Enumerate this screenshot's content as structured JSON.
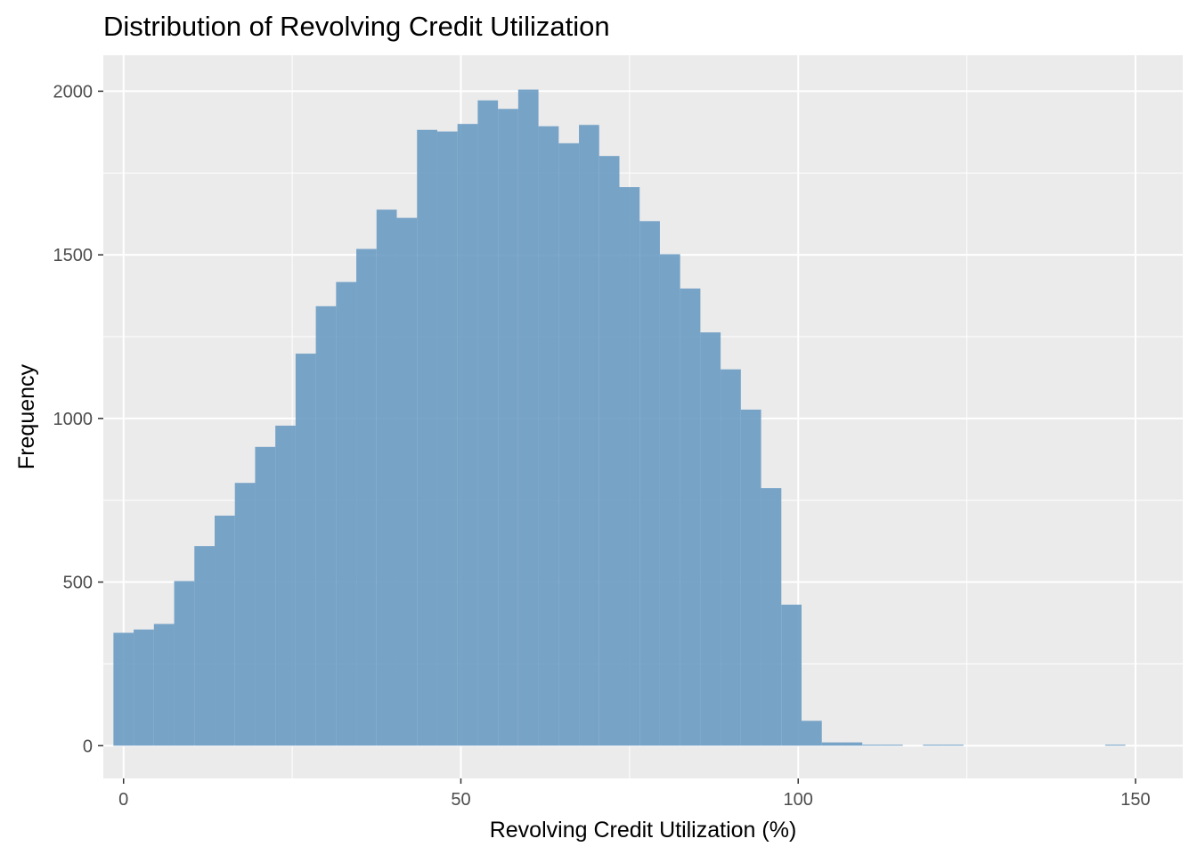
{
  "chart_data": {
    "type": "histogram",
    "title": "Distribution of Revolving Credit Utilization",
    "xlabel": "Revolving Credit Utilization (%)",
    "ylabel": "Frequency",
    "xlim": [
      -3,
      157
    ],
    "ylim": [
      -100,
      2110
    ],
    "x_ticks": [
      0,
      50,
      100,
      150
    ],
    "y_ticks": [
      0,
      500,
      1000,
      1500,
      2000
    ],
    "x_tick_labels": [
      "0",
      "50",
      "100",
      "150"
    ],
    "y_tick_labels": [
      "0",
      "500",
      "1000",
      "1500",
      "2000"
    ],
    "bin_width": 3,
    "first_bin_start": -1.5,
    "values": [
      345,
      355,
      372,
      503,
      610,
      703,
      803,
      913,
      978,
      1198,
      1343,
      1417,
      1518,
      1638,
      1613,
      1882,
      1877,
      1900,
      1972,
      1946,
      2005,
      1893,
      1841,
      1897,
      1802,
      1707,
      1603,
      1502,
      1397,
      1263,
      1150,
      1027,
      787,
      431,
      76,
      10,
      10,
      3,
      3,
      0,
      3,
      3,
      0,
      0,
      0,
      0,
      0,
      0,
      0,
      3
    ],
    "bar_color": "#6a9bc3",
    "panel_background": "#ebebeb",
    "grid": true,
    "legend": "none"
  }
}
